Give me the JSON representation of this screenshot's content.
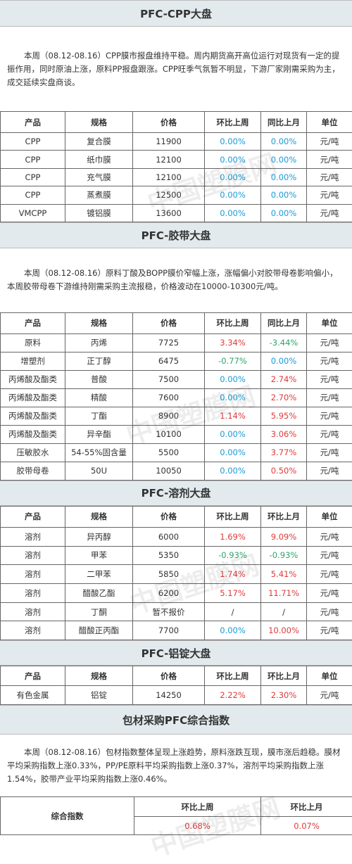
{
  "watermark": "中国塑膜网",
  "sections": [
    {
      "title": "PFC-CPP大盘",
      "paragraph": "本周（08.12-08.16）CPP膜市报盘维持平稳。周内期货高开高位运行对现货有一定的提振作用，同时原油上涨，原料PP报盘跟涨。CPP旺季气氛暂不明显，下游厂家刚需采购为主，成交延续实盘商谈。",
      "table": {
        "header": [
          "产品",
          "规格",
          "价格",
          "环比上周",
          "同比上月",
          "单位"
        ],
        "rows": [
          [
            "CPP",
            "复合膜",
            11900,
            "0.00%",
            "0.00%",
            "元/吨"
          ],
          [
            "CPP",
            "纸巾膜",
            12100,
            "0.00%",
            "0.00%",
            "元/吨"
          ],
          [
            "CPP",
            "充气膜",
            12100,
            "0.00%",
            "0.00%",
            "元/吨"
          ],
          [
            "CPP",
            "蒸煮膜",
            12500,
            "0.00%",
            "0.00%",
            "元/吨"
          ],
          [
            "VMCPP",
            "镀铝膜",
            13600,
            "0.00%",
            "0.00%",
            "元/吨"
          ]
        ]
      }
    },
    {
      "title": "PFC-胶带大盘",
      "paragraph": "本周（08.12-08.16）原料丁酸及BOPP膜价窄幅上涨，涨幅偏小对胶带母卷影响偏小，本周胶带母卷下游维持刚需采购主流报稳，价格波动在10000-10300元/吨。",
      "table": {
        "header": [
          "产品",
          "规格",
          "价格",
          "环比上周",
          "同比上月",
          "单位"
        ],
        "rows": [
          [
            "原料",
            "丙烯",
            7725,
            "3.34%",
            "-3.44%",
            "元/吨"
          ],
          [
            "增塑剂",
            "正丁醇",
            6475,
            "-0.77%",
            "0.00%",
            "元/吨"
          ],
          [
            "丙烯酸及酯类",
            "普酸",
            7500,
            "0.00%",
            "2.74%",
            "元/吨"
          ],
          [
            "丙烯酸及酯类",
            "精酸",
            7600,
            "0.00%",
            "2.70%",
            "元/吨"
          ],
          [
            "丙烯酸及酯类",
            "丁酯",
            8900,
            "1.14%",
            "5.95%",
            "元/吨"
          ],
          [
            "丙烯酸及酯类",
            "异辛酯",
            10100,
            "0.00%",
            "3.06%",
            "元/吨"
          ],
          [
            "压敏胶水",
            "54-55%固含量",
            5500,
            "0.00%",
            "3.77%",
            "元/吨"
          ],
          [
            "胶带母卷",
            "50U",
            10050,
            "0.00%",
            "0.50%",
            "元/吨"
          ]
        ]
      }
    },
    {
      "title": "PFC-溶剂大盘",
      "table": {
        "header": [
          "产品",
          "规格",
          "价格",
          "环比上周",
          "环比上月",
          "单位"
        ],
        "rows": [
          [
            "溶剂",
            "异丙醇",
            6000,
            "1.69%",
            "9.09%",
            "元/吨"
          ],
          [
            "溶剂",
            "甲苯",
            5350,
            "-0.93%",
            "-0.93%",
            "元/吨"
          ],
          [
            "溶剂",
            "二甲苯",
            5850,
            "1.74%",
            "5.41%",
            "元/吨"
          ],
          [
            "溶剂",
            "醋酸乙酯",
            6200,
            "5.17%",
            "11.71%",
            "元/吨"
          ],
          [
            "溶剂",
            "丁酮",
            "暂不报价",
            "/",
            "/",
            "元/吨"
          ],
          [
            "溶剂",
            "醋酸正丙酯",
            7700,
            "0.00%",
            "10.00%",
            "元/吨"
          ]
        ]
      }
    },
    {
      "title": "PFC-铝锭大盘",
      "table": {
        "header": [
          "产品",
          "规格",
          "价格",
          "环比上周",
          "环比上月",
          "单位"
        ],
        "rows": [
          [
            "有色金属",
            "铝锭",
            14250,
            "2.22%",
            "2.30%",
            "元/吨"
          ]
        ]
      }
    },
    {
      "title": "包材采购PFC综合指数",
      "paragraph": "本周（08.12-08.16）包材指数整体呈现上涨趋势，原料涨跌互现，膜市涨后趋稳。膜材平均采购指数上涨0.33%，PP/PE原料平均采购指数上涨0.37%，溶剂平均采购指数上涨1.54%，胶带产业平均采购指数上涨0.46%。",
      "index": {
        "label": "综合指数",
        "header": [
          "环比上周",
          "环比上月"
        ],
        "values": [
          "0.68%",
          "0.07%"
        ]
      }
    }
  ]
}
